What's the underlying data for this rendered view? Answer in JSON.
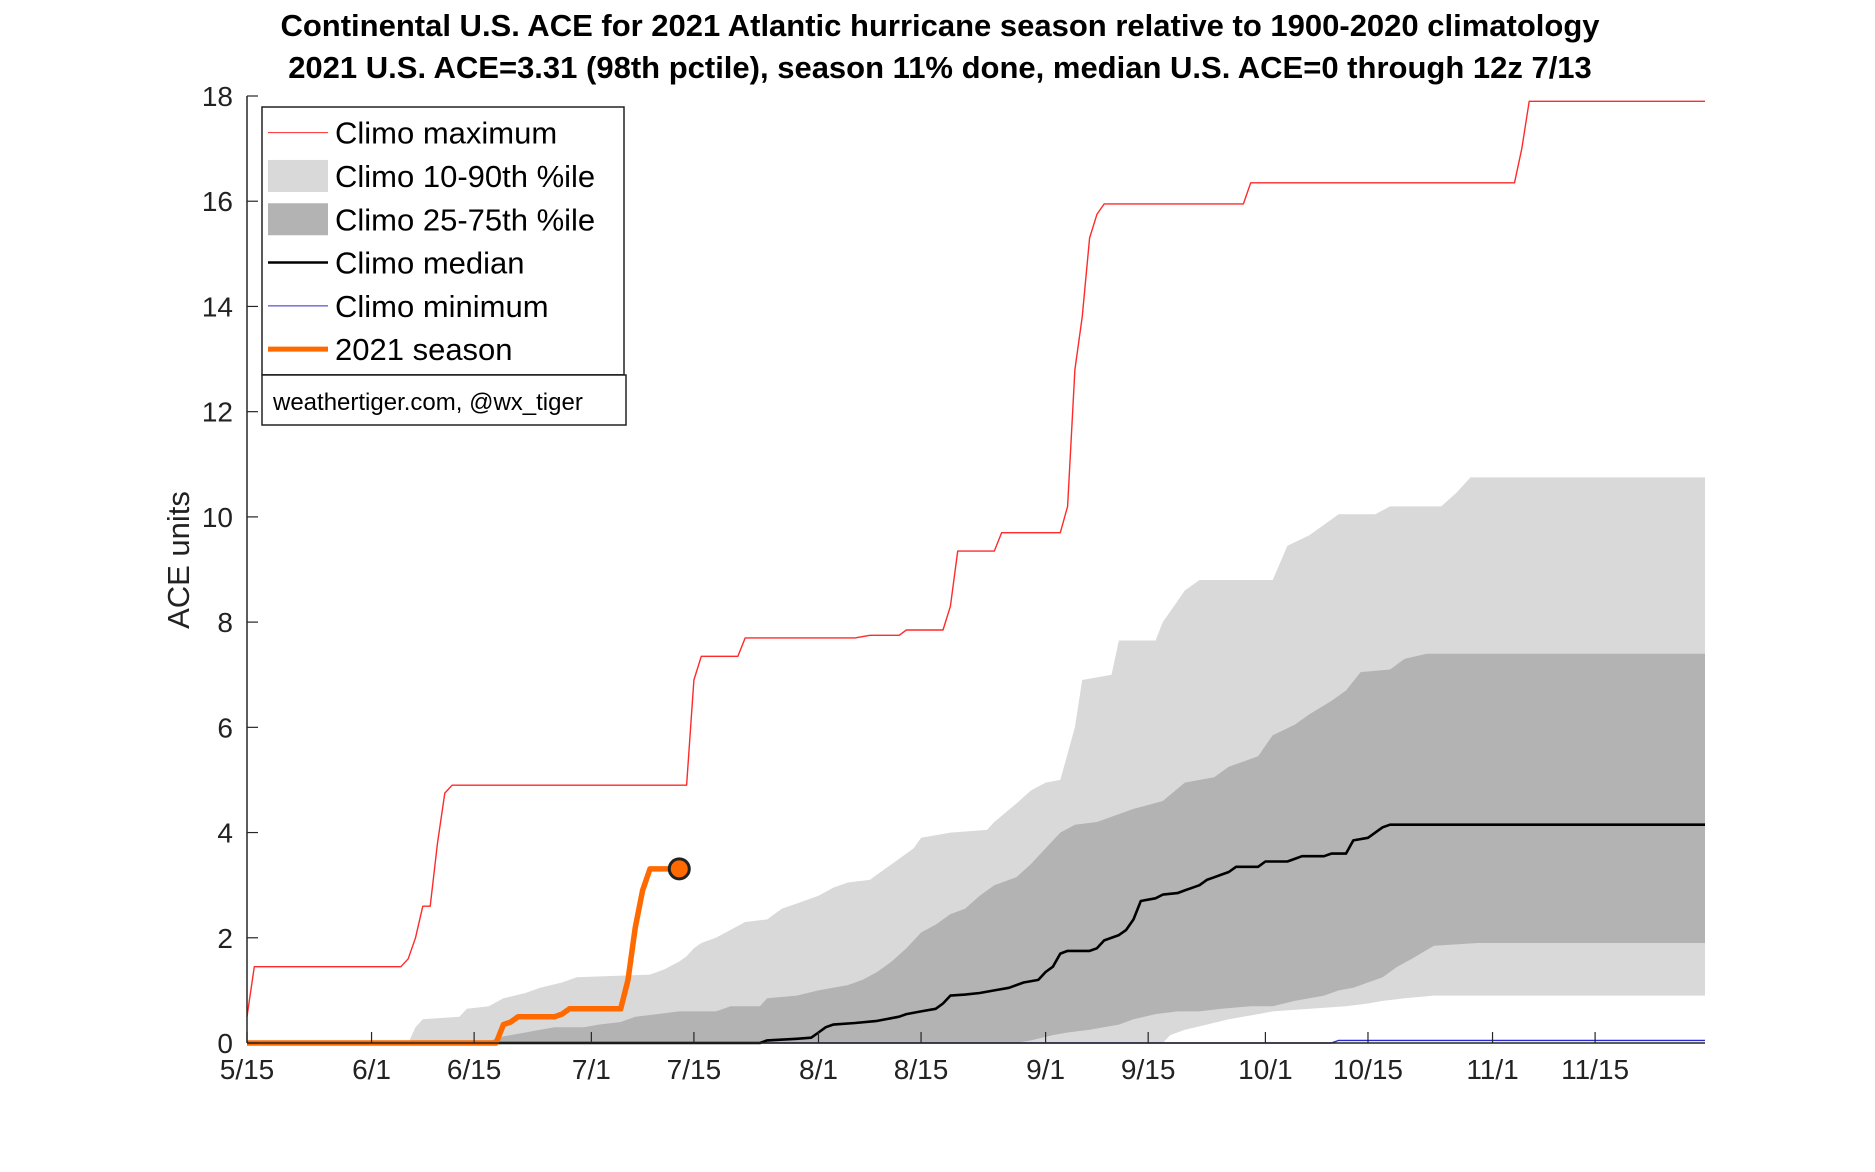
{
  "chart_data": {
    "type": "area",
    "title": "Continental U.S. ACE for 2021 Atlantic hurricane season relative to 1900-2020 climatology",
    "subtitle": "2021 U.S. ACE=3.31 (98th pctile), season 11% done, median U.S. ACE=0 through 12z 7/13",
    "xlabel": "",
    "ylabel": "ACE units",
    "x_unit": "day of season (0 = 5/15)",
    "xlim": [
      0,
      199
    ],
    "ylim": [
      0,
      18
    ],
    "x_ticks": [
      {
        "x": 0,
        "label": "5/15"
      },
      {
        "x": 17,
        "label": "6/1"
      },
      {
        "x": 31,
        "label": "6/15"
      },
      {
        "x": 47,
        "label": "7/1"
      },
      {
        "x": 61,
        "label": "7/15"
      },
      {
        "x": 78,
        "label": "8/1"
      },
      {
        "x": 92,
        "label": "8/15"
      },
      {
        "x": 109,
        "label": "9/1"
      },
      {
        "x": 123,
        "label": "9/15"
      },
      {
        "x": 139,
        "label": "10/1"
      },
      {
        "x": 153,
        "label": "10/15"
      },
      {
        "x": 170,
        "label": "11/1"
      },
      {
        "x": 184,
        "label": "11/15"
      }
    ],
    "y_ticks": [
      0,
      2,
      4,
      6,
      8,
      10,
      12,
      14,
      16,
      18
    ],
    "legend_position": "top-left",
    "legend": [
      {
        "label": "Climo maximum",
        "kind": "line",
        "color": "#ff2a2a",
        "width": 1
      },
      {
        "label": "Climo 10-90th %ile",
        "kind": "patch",
        "color": "#d9d9d9"
      },
      {
        "label": "Climo 25-75th %ile",
        "kind": "patch",
        "color": "#b3b3b3"
      },
      {
        "label": "Climo median",
        "kind": "line",
        "color": "#000000",
        "width": 2.5
      },
      {
        "label": "Climo minimum",
        "kind": "line",
        "color": "#2a2ad4",
        "width": 1
      },
      {
        "label": "2021 season",
        "kind": "line",
        "color": "#ff6a00",
        "width": 5
      }
    ],
    "credit": "weathertiger.com, @wx_tiger",
    "series": [
      {
        "name": "Climo maximum",
        "color": "#ff2a2a",
        "points": [
          [
            0,
            0.5
          ],
          [
            1,
            1.45
          ],
          [
            21,
            1.45
          ],
          [
            22,
            1.6
          ],
          [
            23,
            2.0
          ],
          [
            24,
            2.6
          ],
          [
            25,
            2.6
          ],
          [
            26,
            3.8
          ],
          [
            27,
            4.75
          ],
          [
            28,
            4.9
          ],
          [
            60,
            4.9
          ],
          [
            61,
            6.9
          ],
          [
            62,
            7.35
          ],
          [
            67,
            7.35
          ],
          [
            68,
            7.7
          ],
          [
            83,
            7.7
          ],
          [
            85,
            7.75
          ],
          [
            89,
            7.75
          ],
          [
            90,
            7.85
          ],
          [
            95,
            7.85
          ],
          [
            96,
            8.3
          ],
          [
            97,
            9.35
          ],
          [
            102,
            9.35
          ],
          [
            103,
            9.7
          ],
          [
            111,
            9.7
          ],
          [
            112,
            10.2
          ],
          [
            113,
            12.8
          ],
          [
            114,
            13.8
          ],
          [
            115,
            15.3
          ],
          [
            116,
            15.75
          ],
          [
            117,
            15.95
          ],
          [
            136,
            15.95
          ],
          [
            137,
            16.35
          ],
          [
            173,
            16.35
          ],
          [
            174,
            17.0
          ],
          [
            175,
            17.9
          ],
          [
            199,
            17.9
          ]
        ]
      },
      {
        "name": "Climo 90th percentile",
        "color": "#d9d9d9",
        "points": [
          [
            0,
            0
          ],
          [
            22,
            0
          ],
          [
            23,
            0.3
          ],
          [
            24,
            0.45
          ],
          [
            29,
            0.5
          ],
          [
            30,
            0.65
          ],
          [
            33,
            0.7
          ],
          [
            35,
            0.85
          ],
          [
            38,
            0.95
          ],
          [
            40,
            1.05
          ],
          [
            43,
            1.15
          ],
          [
            45,
            1.25
          ],
          [
            55,
            1.3
          ],
          [
            57,
            1.4
          ],
          [
            59,
            1.55
          ],
          [
            60,
            1.65
          ],
          [
            61,
            1.8
          ],
          [
            62,
            1.9
          ],
          [
            64,
            2.0
          ],
          [
            66,
            2.15
          ],
          [
            68,
            2.3
          ],
          [
            71,
            2.35
          ],
          [
            73,
            2.55
          ],
          [
            75,
            2.65
          ],
          [
            78,
            2.8
          ],
          [
            80,
            2.95
          ],
          [
            82,
            3.05
          ],
          [
            85,
            3.1
          ],
          [
            87,
            3.3
          ],
          [
            89,
            3.5
          ],
          [
            91,
            3.7
          ],
          [
            92,
            3.9
          ],
          [
            96,
            4.0
          ],
          [
            101,
            4.05
          ],
          [
            102,
            4.2
          ],
          [
            105,
            4.55
          ],
          [
            107,
            4.8
          ],
          [
            109,
            4.95
          ],
          [
            111,
            5.0
          ],
          [
            112,
            5.5
          ],
          [
            113,
            6.0
          ],
          [
            114,
            6.9
          ],
          [
            118,
            7.0
          ],
          [
            119,
            7.65
          ],
          [
            124,
            7.65
          ],
          [
            125,
            8.0
          ],
          [
            127,
            8.4
          ],
          [
            128,
            8.6
          ],
          [
            130,
            8.8
          ],
          [
            140,
            8.8
          ],
          [
            142,
            9.45
          ],
          [
            145,
            9.65
          ],
          [
            147,
            9.85
          ],
          [
            149,
            10.05
          ],
          [
            154,
            10.05
          ],
          [
            156,
            10.2
          ],
          [
            163,
            10.2
          ],
          [
            165,
            10.45
          ],
          [
            167,
            10.75
          ],
          [
            199,
            10.75
          ]
        ]
      },
      {
        "name": "Climo 75th percentile",
        "color": "#b3b3b3",
        "points": [
          [
            0,
            0
          ],
          [
            33,
            0
          ],
          [
            34,
            0.1
          ],
          [
            36,
            0.15
          ],
          [
            38,
            0.2
          ],
          [
            40,
            0.25
          ],
          [
            42,
            0.3
          ],
          [
            46,
            0.3
          ],
          [
            48,
            0.35
          ],
          [
            51,
            0.4
          ],
          [
            53,
            0.5
          ],
          [
            56,
            0.55
          ],
          [
            59,
            0.6
          ],
          [
            64,
            0.6
          ],
          [
            66,
            0.7
          ],
          [
            70,
            0.7
          ],
          [
            71,
            0.85
          ],
          [
            75,
            0.9
          ],
          [
            78,
            1.0
          ],
          [
            82,
            1.1
          ],
          [
            84,
            1.2
          ],
          [
            86,
            1.35
          ],
          [
            88,
            1.55
          ],
          [
            90,
            1.8
          ],
          [
            92,
            2.1
          ],
          [
            94,
            2.25
          ],
          [
            96,
            2.45
          ],
          [
            98,
            2.55
          ],
          [
            100,
            2.8
          ],
          [
            102,
            3.0
          ],
          [
            105,
            3.15
          ],
          [
            107,
            3.4
          ],
          [
            109,
            3.7
          ],
          [
            111,
            4.0
          ],
          [
            113,
            4.15
          ],
          [
            116,
            4.2
          ],
          [
            118,
            4.3
          ],
          [
            121,
            4.45
          ],
          [
            125,
            4.6
          ],
          [
            128,
            4.95
          ],
          [
            132,
            5.05
          ],
          [
            134,
            5.25
          ],
          [
            138,
            5.45
          ],
          [
            140,
            5.85
          ],
          [
            143,
            6.05
          ],
          [
            145,
            6.25
          ],
          [
            148,
            6.5
          ],
          [
            150,
            6.7
          ],
          [
            152,
            7.05
          ],
          [
            156,
            7.1
          ],
          [
            158,
            7.3
          ],
          [
            161,
            7.4
          ],
          [
            199,
            7.4
          ]
        ]
      },
      {
        "name": "Climo 25th percentile",
        "color": "#b3b3b3",
        "points": [
          [
            0,
            0
          ],
          [
            105,
            0
          ],
          [
            107,
            0.05
          ],
          [
            110,
            0.15
          ],
          [
            112,
            0.2
          ],
          [
            115,
            0.25
          ],
          [
            119,
            0.35
          ],
          [
            121,
            0.45
          ],
          [
            124,
            0.55
          ],
          [
            127,
            0.6
          ],
          [
            130,
            0.6
          ],
          [
            133,
            0.65
          ],
          [
            137,
            0.7
          ],
          [
            140,
            0.7
          ],
          [
            143,
            0.8
          ],
          [
            145,
            0.85
          ],
          [
            147,
            0.9
          ],
          [
            149,
            1.0
          ],
          [
            151,
            1.05
          ],
          [
            153,
            1.15
          ],
          [
            155,
            1.25
          ],
          [
            157,
            1.45
          ],
          [
            159,
            1.6
          ],
          [
            162,
            1.85
          ],
          [
            168,
            1.9
          ],
          [
            199,
            1.9
          ]
        ]
      },
      {
        "name": "Climo 10th percentile",
        "color": "#d9d9d9",
        "points": [
          [
            0,
            0
          ],
          [
            125,
            0
          ],
          [
            126,
            0.15
          ],
          [
            128,
            0.25
          ],
          [
            131,
            0.35
          ],
          [
            134,
            0.45
          ],
          [
            138,
            0.55
          ],
          [
            140,
            0.6
          ],
          [
            150,
            0.7
          ],
          [
            153,
            0.75
          ],
          [
            155,
            0.8
          ],
          [
            158,
            0.85
          ],
          [
            162,
            0.9
          ],
          [
            199,
            0.9
          ]
        ]
      },
      {
        "name": "Climo median",
        "color": "#000000",
        "points": [
          [
            0,
            0
          ],
          [
            70,
            0
          ],
          [
            71,
            0.05
          ],
          [
            75,
            0.08
          ],
          [
            77,
            0.1
          ],
          [
            78,
            0.2
          ],
          [
            79,
            0.3
          ],
          [
            80,
            0.35
          ],
          [
            83,
            0.38
          ],
          [
            86,
            0.42
          ],
          [
            89,
            0.5
          ],
          [
            90,
            0.55
          ],
          [
            92,
            0.6
          ],
          [
            94,
            0.65
          ],
          [
            95,
            0.75
          ],
          [
            96,
            0.9
          ],
          [
            98,
            0.92
          ],
          [
            100,
            0.95
          ],
          [
            102,
            1.0
          ],
          [
            104,
            1.05
          ],
          [
            106,
            1.15
          ],
          [
            108,
            1.2
          ],
          [
            109,
            1.35
          ],
          [
            110,
            1.45
          ],
          [
            111,
            1.7
          ],
          [
            112,
            1.75
          ],
          [
            115,
            1.75
          ],
          [
            116,
            1.8
          ],
          [
            117,
            1.95
          ],
          [
            119,
            2.05
          ],
          [
            120,
            2.15
          ],
          [
            121,
            2.35
          ],
          [
            122,
            2.7
          ],
          [
            124,
            2.75
          ],
          [
            125,
            2.82
          ],
          [
            127,
            2.85
          ],
          [
            128,
            2.9
          ],
          [
            129,
            2.95
          ],
          [
            130,
            3.0
          ],
          [
            131,
            3.1
          ],
          [
            132,
            3.15
          ],
          [
            133,
            3.2
          ],
          [
            134,
            3.25
          ],
          [
            135,
            3.35
          ],
          [
            138,
            3.35
          ],
          [
            139,
            3.45
          ],
          [
            142,
            3.45
          ],
          [
            143,
            3.5
          ],
          [
            144,
            3.55
          ],
          [
            147,
            3.55
          ],
          [
            148,
            3.6
          ],
          [
            150,
            3.6
          ],
          [
            151,
            3.85
          ],
          [
            153,
            3.9
          ],
          [
            154,
            4.0
          ],
          [
            155,
            4.1
          ],
          [
            156,
            4.15
          ],
          [
            199,
            4.15
          ]
        ]
      },
      {
        "name": "Climo minimum",
        "color": "#2a2ad4",
        "points": [
          [
            0,
            0
          ],
          [
            148,
            0
          ],
          [
            149,
            0.05
          ],
          [
            199,
            0.05
          ]
        ]
      },
      {
        "name": "2021 season",
        "color": "#ff6a00",
        "points": [
          [
            0,
            0
          ],
          [
            34,
            0
          ],
          [
            35,
            0.35
          ],
          [
            36,
            0.4
          ],
          [
            37,
            0.5
          ],
          [
            42,
            0.5
          ],
          [
            43,
            0.55
          ],
          [
            44,
            0.65
          ],
          [
            51,
            0.65
          ],
          [
            52,
            1.2
          ],
          [
            53,
            2.2
          ],
          [
            54,
            2.9
          ],
          [
            55,
            3.31
          ],
          [
            59,
            3.31
          ]
        ],
        "end_marker": {
          "x": 59,
          "y": 3.31
        }
      }
    ]
  }
}
